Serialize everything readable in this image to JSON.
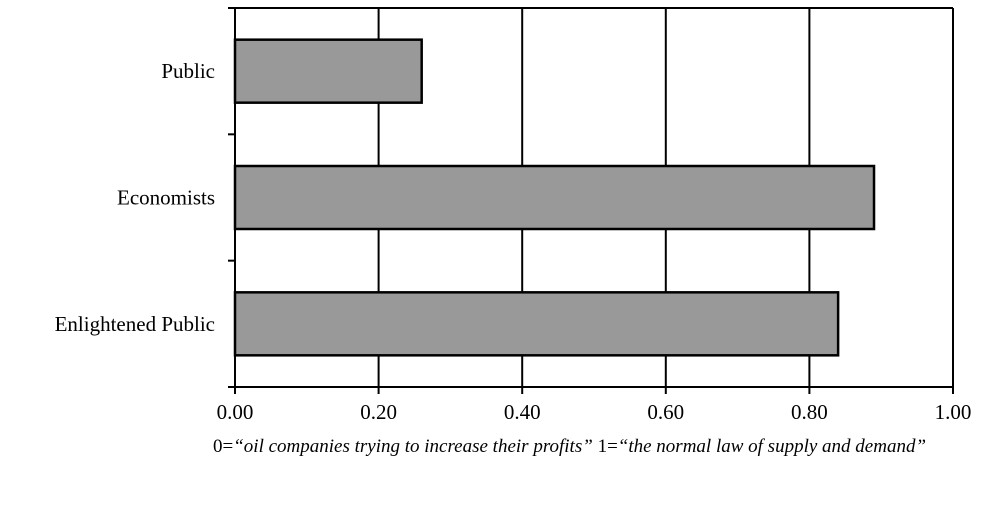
{
  "chart_data": {
    "type": "bar",
    "orientation": "horizontal",
    "categories": [
      "Public",
      "Economists",
      "Enlightened Public"
    ],
    "values": [
      0.26,
      0.89,
      0.84
    ],
    "xlim": [
      0,
      1
    ],
    "xticks": [
      0,
      0.2,
      0.4,
      0.6,
      0.8,
      1.0
    ],
    "xtick_labels": [
      "0.00",
      "0.20",
      "0.40",
      "0.60",
      "0.80",
      "1.00"
    ],
    "grid": "vertical",
    "colors": {
      "bar_fill": "#999999",
      "bar_stroke": "#000000",
      "axis": "#000000",
      "grid": "#000000"
    }
  },
  "caption": {
    "low_value": "0=",
    "low_label": "“oil companies trying to increase their profits”",
    "high_value": " 1=",
    "high_label": "“the normal law of supply and demand”"
  }
}
